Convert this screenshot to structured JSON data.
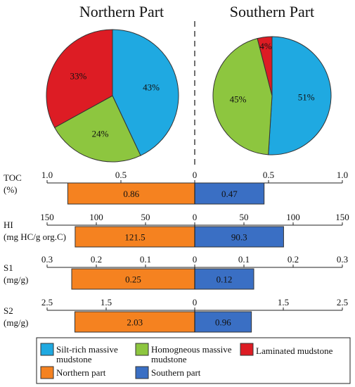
{
  "colors": {
    "silt_rich": "#1fa9e1",
    "homogeneous": "#8dc63f",
    "laminated": "#dd1c24",
    "northern": "#f58220",
    "southern": "#3a6fc4",
    "outline": "#333333"
  },
  "chart_data": [
    {
      "type": "pie",
      "title": "Northern Part",
      "categories": [
        "Silt-rich massive mudstone",
        "Homogneous massive mudstone",
        "Laminated mudstone"
      ],
      "values": [
        43,
        24,
        33
      ],
      "labels": [
        "43%",
        "24%",
        "33%"
      ]
    },
    {
      "type": "pie",
      "title": "Southern Part",
      "categories": [
        "Silt-rich massive mudstone",
        "Homogneous massive mudstone",
        "Laminated mudstone"
      ],
      "values": [
        51,
        45,
        4
      ],
      "labels": [
        "51%",
        "45%",
        "4%"
      ]
    },
    {
      "type": "bar",
      "label_lines": [
        "TOC",
        "(%)"
      ],
      "max": 1.0,
      "ticks": [
        {
          "value": 1.0,
          "text": "1.0"
        },
        {
          "value": 0.5,
          "text": "0.5"
        },
        {
          "value": 0,
          "text": "0"
        },
        {
          "value": 0.5,
          "text": "0.5",
          "side": "right"
        },
        {
          "value": 1.0,
          "text": "1.0",
          "side": "right"
        }
      ],
      "series": [
        {
          "name": "Northern part",
          "value": 0.86,
          "text": "0.86"
        },
        {
          "name": "Southern part",
          "value": 0.47,
          "text": "0.47"
        }
      ]
    },
    {
      "type": "bar",
      "label_lines": [
        "HI",
        "(mg HC/g org.C)"
      ],
      "max": 150,
      "ticks": [
        {
          "value": 150,
          "text": "150"
        },
        {
          "value": 100,
          "text": "100"
        },
        {
          "value": 50,
          "text": "50"
        },
        {
          "value": 0,
          "text": "0"
        },
        {
          "value": 50,
          "text": "50",
          "side": "right"
        },
        {
          "value": 100,
          "text": "100",
          "side": "right"
        },
        {
          "value": 150,
          "text": "150",
          "side": "right"
        }
      ],
      "series": [
        {
          "name": "Northern part",
          "value": 121.5,
          "text": "121.5"
        },
        {
          "name": "Southern part",
          "value": 90.3,
          "text": "90.3"
        }
      ]
    },
    {
      "type": "bar",
      "label_lines": [
        "S1",
        "(mg/g)"
      ],
      "max": 0.3,
      "ticks": [
        {
          "value": 0.3,
          "text": "0.3"
        },
        {
          "value": 0.2,
          "text": "0.2"
        },
        {
          "value": 0.1,
          "text": "0.1"
        },
        {
          "value": 0,
          "text": "0"
        },
        {
          "value": 0.1,
          "text": "0.1",
          "side": "right"
        },
        {
          "value": 0.2,
          "text": "0.2",
          "side": "right"
        },
        {
          "value": 0.3,
          "text": "0.3",
          "side": "right"
        }
      ],
      "series": [
        {
          "name": "Northern part",
          "value": 0.25,
          "text": "0.25"
        },
        {
          "name": "Southern part",
          "value": 0.12,
          "text": "0.12"
        }
      ]
    },
    {
      "type": "bar",
      "label_lines": [
        "S2",
        "(mg/g)"
      ],
      "max": 2.5,
      "ticks": [
        {
          "value": 2.5,
          "text": "2.5"
        },
        {
          "value": 1.5,
          "text": "1.5"
        },
        {
          "value": 0,
          "text": "0"
        },
        {
          "value": 1.5,
          "text": "1.5",
          "side": "right"
        },
        {
          "value": 2.5,
          "text": "2.5",
          "side": "right"
        }
      ],
      "series": [
        {
          "name": "Northern part",
          "value": 2.03,
          "text": "2.03"
        },
        {
          "name": "Southern part",
          "value": 0.96,
          "text": "0.96"
        }
      ]
    }
  ],
  "legend": {
    "items": [
      {
        "label_lines": [
          "Silt-rich massive",
          "mudstone"
        ],
        "color_key": "silt_rich"
      },
      {
        "label_lines": [
          "Homogneous massive",
          "mudstone"
        ],
        "color_key": "homogeneous"
      },
      {
        "label_lines": [
          "Laminated mudstone"
        ],
        "color_key": "laminated"
      },
      {
        "label_lines": [
          "Northern part"
        ],
        "color_key": "northern"
      },
      {
        "label_lines": [
          "Southern part"
        ],
        "color_key": "southern"
      }
    ]
  }
}
